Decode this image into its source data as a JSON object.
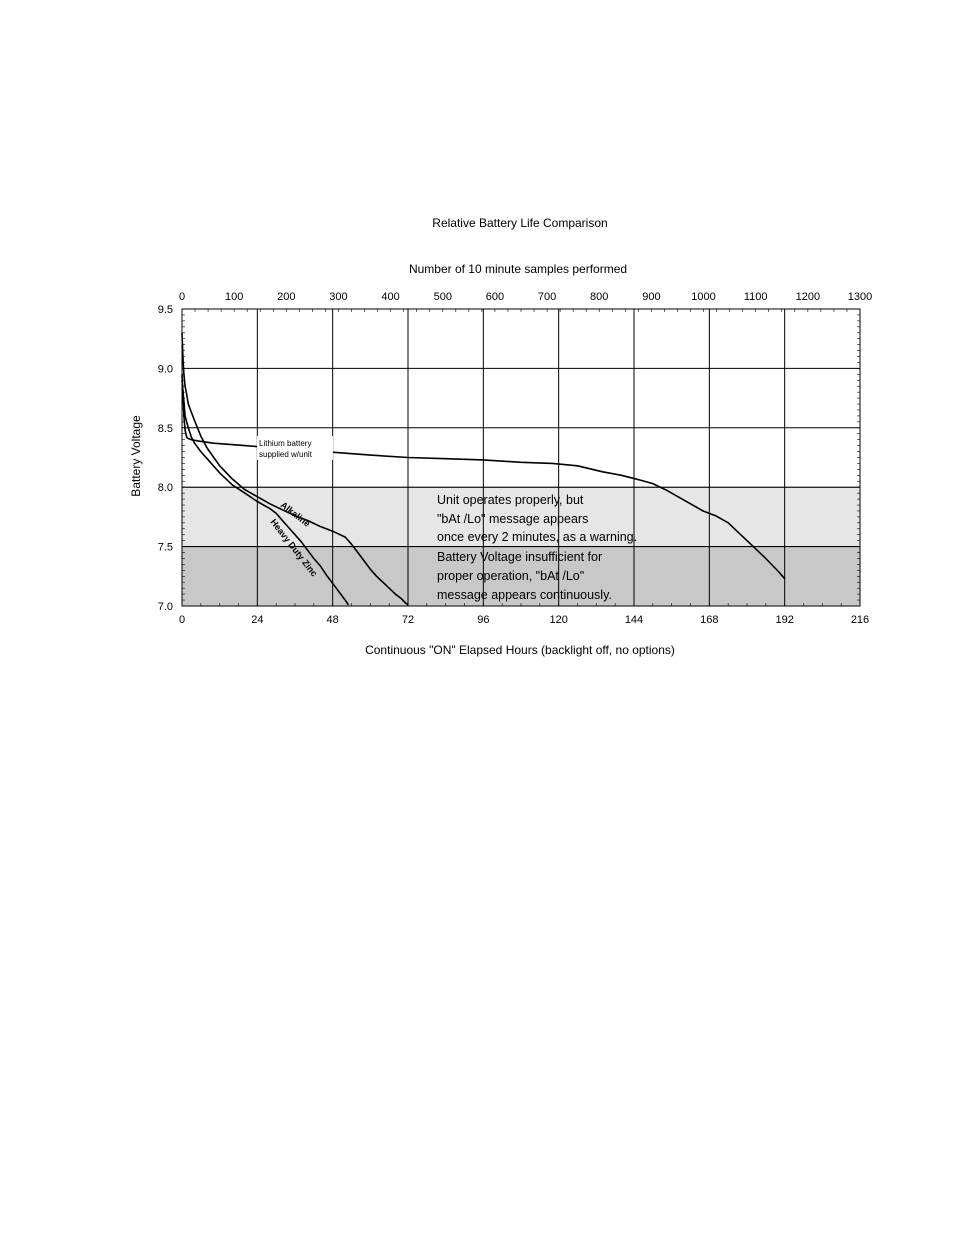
{
  "chart_data": {
    "type": "line",
    "title": "Relative Battery Life Comparison",
    "xlabel": "Continuous \"ON\" Elapsed Hours (backlight off, no options)",
    "x2label": "Number of 10 minute samples performed",
    "ylabel": "Battery Voltage",
    "xlim": [
      0,
      216
    ],
    "x2lim": [
      0,
      1300
    ],
    "ylim": [
      7.0,
      9.5
    ],
    "x_ticks": [
      "0",
      "24",
      "48",
      "72",
      "96",
      "120",
      "144",
      "168",
      "192",
      "216"
    ],
    "x2_ticks": [
      "0",
      "100",
      "200",
      "300",
      "400",
      "500",
      "600",
      "700",
      "800",
      "900",
      "1000",
      "1100",
      "1200",
      "1300"
    ],
    "y_ticks": [
      "7.0",
      "7.5",
      "8.0",
      "8.5",
      "9.0",
      "9.5"
    ],
    "grid": true,
    "bands": [
      {
        "name": "warning",
        "y_range": [
          7.5,
          8.0
        ],
        "color": "#e6e6e6"
      },
      {
        "name": "insufficient",
        "y_range": [
          7.0,
          7.5
        ],
        "color": "#c8c8c8"
      }
    ],
    "annotations": {
      "lithium_line1": "Lithium battery",
      "lithium_line2": "supplied w/unit",
      "alkaline": "Alkaline",
      "heavy_duty": "Heavy Duty Zinc",
      "warning_line1": "Unit operates properly, but",
      "warning_line2": "\"bAt /Lo\" message appears",
      "warning_line3": "once every 2 minutes, as a warning.",
      "insufficient_line1": "Battery Voltage insufficient for",
      "insufficient_line2": "proper operation,     \"bAt /Lo\"",
      "insufficient_line3": "message appears continuously."
    },
    "series": [
      {
        "key": "lithium",
        "x": [
          0,
          0.3,
          0.6,
          1.0,
          1.5,
          2,
          3,
          5,
          10,
          20,
          30,
          40,
          50,
          60,
          72,
          84,
          96,
          108,
          118,
          126,
          134,
          140,
          146,
          150,
          154,
          158,
          162,
          166,
          170,
          174,
          178,
          182,
          186,
          190,
          192
        ],
        "y": [
          8.95,
          8.8,
          8.6,
          8.48,
          8.42,
          8.41,
          8.4,
          8.39,
          8.37,
          8.35,
          8.33,
          8.31,
          8.29,
          8.27,
          8.25,
          8.24,
          8.23,
          8.21,
          8.2,
          8.18,
          8.13,
          8.1,
          8.06,
          8.03,
          7.98,
          7.92,
          7.86,
          7.8,
          7.76,
          7.7,
          7.6,
          7.5,
          7.4,
          7.29,
          7.23
        ]
      },
      {
        "key": "alkaline",
        "x": [
          0,
          0.3,
          0.6,
          1,
          1.5,
          2,
          3,
          4,
          6,
          8,
          12,
          16,
          20,
          24,
          28,
          32,
          36,
          40,
          44,
          48,
          52,
          54,
          56,
          58,
          60,
          62,
          64,
          66,
          68,
          70,
          71,
          72
        ],
        "y": [
          9.3,
          9.1,
          8.95,
          8.85,
          8.78,
          8.7,
          8.63,
          8.56,
          8.43,
          8.33,
          8.18,
          8.07,
          7.98,
          7.92,
          7.86,
          7.81,
          7.76,
          7.72,
          7.67,
          7.63,
          7.58,
          7.52,
          7.45,
          7.38,
          7.31,
          7.25,
          7.2,
          7.15,
          7.1,
          7.06,
          7.03,
          7.01
        ]
      },
      {
        "key": "heavy_duty_zinc",
        "x": [
          0,
          0.5,
          1,
          2,
          3,
          4,
          6,
          8,
          10,
          12,
          16,
          20,
          24,
          28,
          30,
          32,
          34,
          36,
          38,
          40,
          42,
          44,
          46,
          48,
          50,
          52,
          53
        ],
        "y": [
          8.9,
          8.75,
          8.6,
          8.5,
          8.42,
          8.37,
          8.3,
          8.24,
          8.18,
          8.12,
          8.02,
          7.95,
          7.88,
          7.82,
          7.78,
          7.72,
          7.66,
          7.6,
          7.54,
          7.47,
          7.4,
          7.34,
          7.26,
          7.19,
          7.12,
          7.05,
          7.01
        ]
      }
    ]
  }
}
